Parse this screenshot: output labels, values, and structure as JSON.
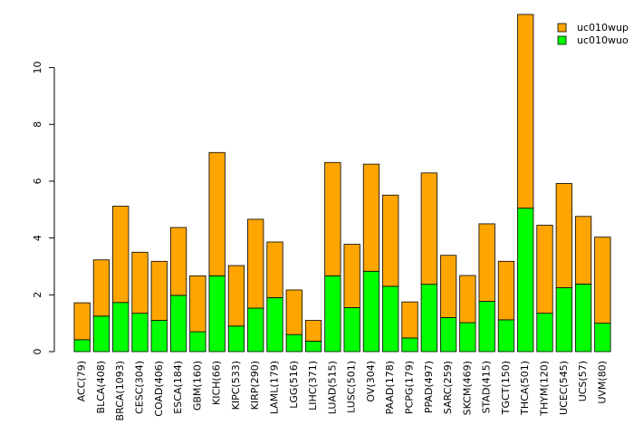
{
  "chart_data": {
    "type": "bar",
    "stacked": true,
    "title": "",
    "xlabel": "",
    "ylabel": "",
    "ylim": [
      0,
      11.9
    ],
    "yticks": [
      0,
      2,
      4,
      6,
      8,
      10
    ],
    "legend_position": "top-right",
    "categories": [
      "ACC(79)",
      "BLCA(408)",
      "BRCA(1093)",
      "CESC(304)",
      "COAD(406)",
      "ESCA(184)",
      "GBM(160)",
      "KICH(66)",
      "KIPC(533)",
      "KIRP(290)",
      "LAML(179)",
      "LGG(516)",
      "LIHC(371)",
      "LUAD(515)",
      "LUSC(501)",
      "OV(304)",
      "PAAD(178)",
      "PCPG(179)",
      "PPAD(497)",
      "SARC(259)",
      "SKCM(469)",
      "STAD(415)",
      "TGCT(150)",
      "THCA(501)",
      "THYM(120)",
      "UCEC(545)",
      "UCS(57)",
      "UVM(80)"
    ],
    "series": [
      {
        "name": "uc010wuo",
        "color": "#00ff00",
        "values": [
          0.42,
          1.25,
          1.73,
          1.35,
          1.1,
          1.98,
          0.7,
          2.67,
          0.9,
          1.53,
          1.9,
          0.6,
          0.37,
          2.67,
          1.55,
          2.83,
          2.3,
          0.48,
          2.37,
          1.2,
          1.02,
          1.77,
          1.12,
          5.05,
          1.35,
          2.25,
          2.38,
          1.0
        ]
      },
      {
        "name": "uc010wup",
        "color": "#ffa500",
        "values": [
          1.3,
          1.98,
          3.39,
          2.15,
          2.08,
          2.39,
          1.97,
          4.34,
          2.13,
          3.13,
          1.96,
          1.57,
          0.73,
          3.99,
          2.23,
          3.77,
          3.21,
          1.27,
          3.92,
          2.19,
          1.66,
          2.73,
          2.06,
          6.82,
          3.1,
          3.67,
          2.38,
          3.03
        ]
      }
    ]
  }
}
